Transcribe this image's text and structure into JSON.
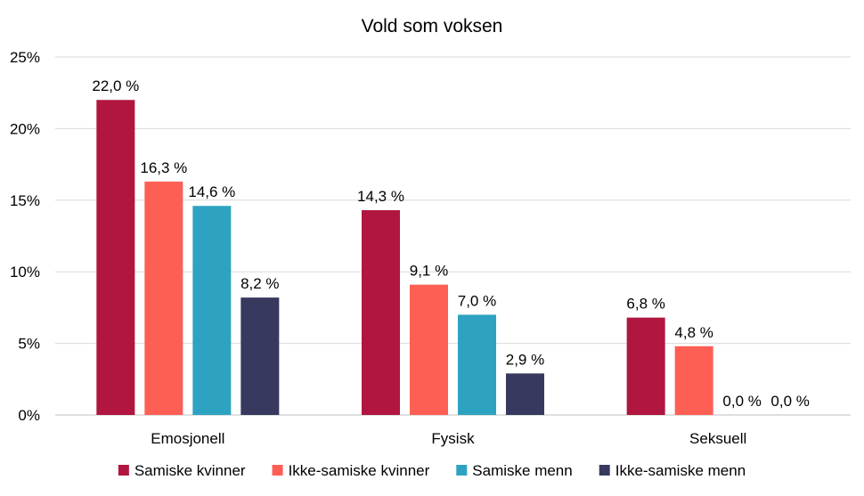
{
  "chart_data": {
    "type": "bar",
    "title": "Vold som voksen",
    "categories": [
      "Emosjonell",
      "Fysisk",
      "Seksuell"
    ],
    "y_ticks": [
      "0%",
      "5%",
      "10%",
      "15%",
      "20%",
      "25%"
    ],
    "ylim": [
      0,
      25
    ],
    "grid": true,
    "legend_position": "bottom",
    "series": [
      {
        "name": "Samiske kvinner",
        "color": "#b0163f",
        "values": [
          22.0,
          14.3,
          6.8
        ],
        "labels": [
          "22,0 %",
          "14,3 %",
          "6,8 %"
        ]
      },
      {
        "name": "Ikke-samiske kvinner",
        "color": "#fe5f55",
        "values": [
          16.3,
          9.1,
          4.8
        ],
        "labels": [
          "16,3 %",
          "9,1 %",
          "4,8 %"
        ]
      },
      {
        "name": "Samiske menn",
        "color": "#2ea3c1",
        "values": [
          14.6,
          7.0,
          0.0
        ],
        "labels": [
          "14,6 %",
          "7,0 %",
          "0,0 %"
        ]
      },
      {
        "name": "Ikke-samiske menn",
        "color": "#373a5e",
        "values": [
          8.2,
          2.9,
          0.0
        ],
        "labels": [
          "8,2 %",
          "2,9 %",
          "0,0 %"
        ]
      }
    ]
  }
}
